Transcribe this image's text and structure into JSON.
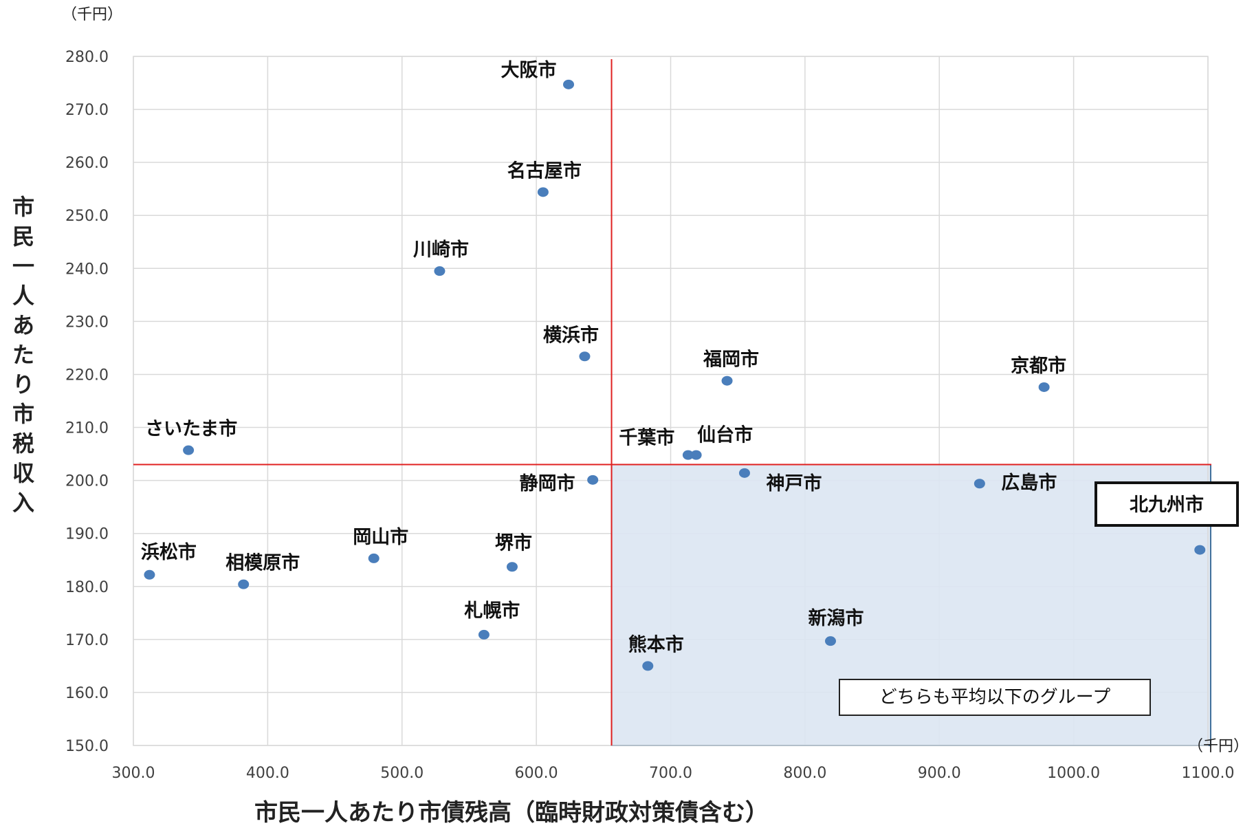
{
  "chart_data": {
    "type": "scatter",
    "x_unit": "（千円）",
    "y_unit": "（千円）",
    "xlabel": "市民一人あたり市債残高（臨時財政対策債含む）",
    "ylabel": "市民一人あたり市税収入",
    "xlim": [
      300,
      1100
    ],
    "ylim": [
      150,
      280
    ],
    "x_ticks": [
      "300.0",
      "400.0",
      "500.0",
      "600.0",
      "700.0",
      "800.0",
      "900.0",
      "1000.0",
      "1100.0"
    ],
    "y_ticks": [
      "150.0",
      "160.0",
      "170.0",
      "180.0",
      "190.0",
      "200.0",
      "210.0",
      "220.0",
      "230.0",
      "240.0",
      "250.0",
      "260.0",
      "270.0",
      "280.0"
    ],
    "grid": true,
    "marker_color": "#4A7EBB",
    "average_line_color": "#E02020",
    "average_x": 656,
    "average_y": 203,
    "highlight_region_color": "#DCE6F2",
    "highlight_label": "どちらも平均以下のグループ",
    "emphasized_city": "北九州市",
    "points": [
      {
        "name": "大阪市",
        "x": 624,
        "y": 274.7
      },
      {
        "name": "名古屋市",
        "x": 605,
        "y": 254.4
      },
      {
        "name": "川崎市",
        "x": 528,
        "y": 239.5
      },
      {
        "name": "横浜市",
        "x": 636,
        "y": 223.4
      },
      {
        "name": "福岡市",
        "x": 742,
        "y": 218.8
      },
      {
        "name": "京都市",
        "x": 978,
        "y": 217.6
      },
      {
        "name": "さいたま市",
        "x": 341,
        "y": 205.7
      },
      {
        "name": "千葉市",
        "x": 713,
        "y": 204.8
      },
      {
        "name": "仙台市",
        "x": 719,
        "y": 204.8
      },
      {
        "name": "静岡市",
        "x": 642,
        "y": 200.1
      },
      {
        "name": "神戸市",
        "x": 755,
        "y": 201.4
      },
      {
        "name": "広島市",
        "x": 930,
        "y": 199.4
      },
      {
        "name": "北九州市",
        "x": 1094,
        "y": 186.9
      },
      {
        "name": "岡山市",
        "x": 479,
        "y": 185.3
      },
      {
        "name": "堺市",
        "x": 582,
        "y": 183.7
      },
      {
        "name": "浜松市",
        "x": 312,
        "y": 182.2
      },
      {
        "name": "相模原市",
        "x": 382,
        "y": 180.4
      },
      {
        "name": "札幌市",
        "x": 561,
        "y": 170.9
      },
      {
        "name": "新潟市",
        "x": 819,
        "y": 169.7
      },
      {
        "name": "熊本市",
        "x": 683,
        "y": 165.0
      }
    ]
  }
}
